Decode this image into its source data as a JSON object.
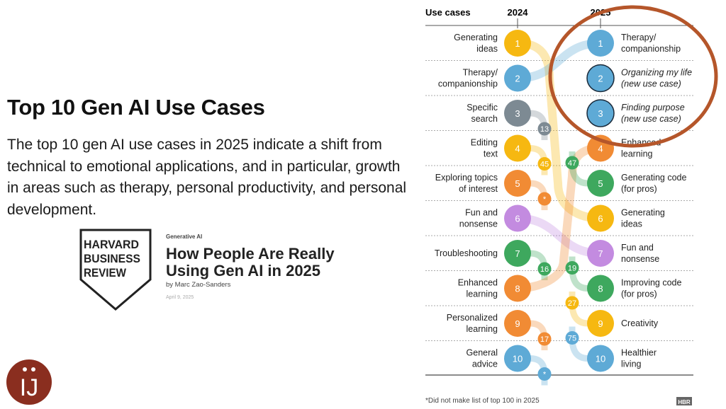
{
  "slide": {
    "title": "Top 10 Gen AI Use Cases",
    "description": "The top 10 gen AI use cases in 2025 indicate a shift from technical to emotional applications, and in particular, growth in areas such as therapy, personal productivity, and personal development."
  },
  "article": {
    "publisher_logo": "HARVARD BUSINESS REVIEW",
    "category": "Generative AI",
    "headline": "How People Are Really Using Gen AI in 2025",
    "byline": "by Marc Zao-Sanders",
    "date": "April 9, 2025"
  },
  "brand_logo": "IJ",
  "chart_data": {
    "type": "bump",
    "header": {
      "label": "Use cases",
      "col1": "2024",
      "col2": "2025"
    },
    "footnote": "*Did not make list of top 100 in 2025",
    "credit": "HBR",
    "highlight_color": "#b5562a",
    "colors": {
      "yellow": "#f6b811",
      "blue": "#5eaad6",
      "gray": "#7d8a93",
      "orange": "#f18b34",
      "green": "#3ea85e",
      "purple": "#c38be0"
    },
    "ranks_2024": [
      {
        "rank": "1",
        "label": [
          "Generating",
          "ideas"
        ],
        "color": "yellow",
        "rank_2025": 6
      },
      {
        "rank": "2",
        "label": [
          "Therapy/",
          "companionship"
        ],
        "color": "blue",
        "rank_2025": 1
      },
      {
        "rank": "3",
        "label": [
          "Specific",
          "search"
        ],
        "color": "gray",
        "rank_2025": "13"
      },
      {
        "rank": "4",
        "label": [
          "Editing",
          "text"
        ],
        "color": "yellow",
        "rank_2025": "45"
      },
      {
        "rank": "5",
        "label": [
          "Exploring topics",
          "of interest"
        ],
        "color": "orange",
        "rank_2025": "*"
      },
      {
        "rank": "6",
        "label": [
          "Fun and",
          "nonsense"
        ],
        "color": "purple",
        "rank_2025": 7
      },
      {
        "rank": "7",
        "label": [
          "Troubleshooting"
        ],
        "color": "green",
        "rank_2025": "16"
      },
      {
        "rank": "8",
        "label": [
          "Enhanced",
          "learning"
        ],
        "color": "orange",
        "rank_2025": 4
      },
      {
        "rank": "9",
        "label": [
          "Personalized",
          "learning"
        ],
        "color": "orange",
        "rank_2025": "17"
      },
      {
        "rank": "10",
        "label": [
          "General",
          "advice"
        ],
        "color": "blue",
        "rank_2025": "*"
      }
    ],
    "ranks_2025": [
      {
        "rank": "1",
        "label": [
          "Therapy/",
          "companionship"
        ],
        "color": "blue",
        "rank_2024": 2
      },
      {
        "rank": "2",
        "label": [
          "Organizing my life",
          "(new use case)"
        ],
        "color": "blue",
        "italic": true,
        "new": true
      },
      {
        "rank": "3",
        "label": [
          "Finding purpose",
          "(new use case)"
        ],
        "color": "blue",
        "italic": true,
        "new": true
      },
      {
        "rank": "4",
        "label": [
          "Enhanced",
          "learning"
        ],
        "color": "orange",
        "rank_2024": 8
      },
      {
        "rank": "5",
        "label": [
          "Generating code",
          "(for pros)"
        ],
        "color": "green",
        "rank_2024": "47"
      },
      {
        "rank": "6",
        "label": [
          "Generating",
          "ideas"
        ],
        "color": "yellow",
        "rank_2024": 1
      },
      {
        "rank": "7",
        "label": [
          "Fun and",
          "nonsense"
        ],
        "color": "purple",
        "rank_2024": 6
      },
      {
        "rank": "8",
        "label": [
          "Improving code",
          "(for pros)"
        ],
        "color": "green",
        "rank_2024": "19"
      },
      {
        "rank": "9",
        "label": [
          "Creativity"
        ],
        "color": "yellow",
        "rank_2024": "27"
      },
      {
        "rank": "10",
        "label": [
          "Healthier",
          "living"
        ],
        "color": "blue",
        "rank_2024": "75"
      }
    ],
    "highlighted_ranks_2025": [
      1,
      2,
      3
    ]
  }
}
